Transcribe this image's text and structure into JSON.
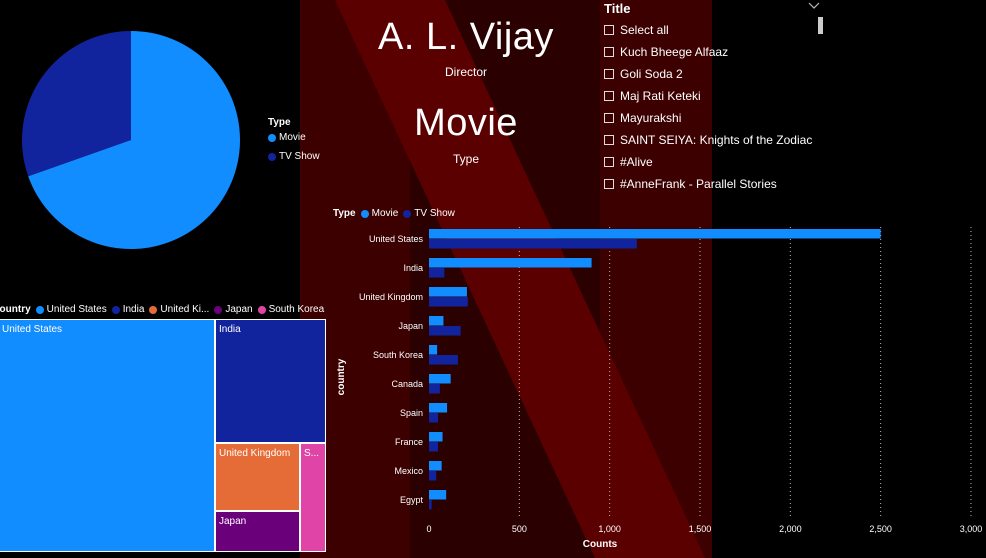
{
  "colors": {
    "movie": "#118DFF",
    "tv_show": "#12239E",
    "united_states": "#118DFF",
    "india": "#12239E",
    "united_kingdom": "#E66C37",
    "japan": "#6B007B",
    "south_korea": "#E044A7"
  },
  "kpi_director": {
    "value": "A. L. Vijay",
    "label": "Director"
  },
  "kpi_type": {
    "value": "Movie",
    "label": "Type"
  },
  "slicer": {
    "title": "Title",
    "items": [
      "Select all",
      "Kuch Bheege Alfaaz",
      "Goli Soda 2",
      "Maj Rati Keteki",
      "Mayurakshi",
      "SAINT SEIYA: Knights of the Zodiac",
      "#Alive",
      "#AnneFrank - Parallel Stories"
    ]
  },
  "chart_data": [
    {
      "type": "pie",
      "legend_title": "Type",
      "legend_position": "right",
      "slices": [
        {
          "label": "Movie",
          "value": 69.6
        },
        {
          "label": "TV Show",
          "value": 30.4
        }
      ]
    },
    {
      "type": "treemap",
      "legend_title": "country",
      "legend_items": [
        "United States",
        "India",
        "United Ki...",
        "Japan",
        "South Korea"
      ],
      "cells": [
        {
          "label": "United States",
          "value": 3650
        },
        {
          "label": "India",
          "value": 975
        },
        {
          "label": "United Kingdom",
          "value": 420
        },
        {
          "label": "Japan",
          "value": 245
        },
        {
          "label": "S...",
          "value": 200
        }
      ]
    },
    {
      "type": "bar",
      "orientation": "horizontal",
      "legend_title": "Type",
      "legend_position": "top-left",
      "xlabel": "Counts",
      "ylabel": "country",
      "xlim": [
        0,
        3000
      ],
      "xticks": [
        0,
        500,
        1000,
        1500,
        2000,
        2500,
        3000
      ],
      "xtick_labels": [
        "0",
        "500",
        "1,000",
        "1,500",
        "2,000",
        "2,500",
        "3,000"
      ],
      "grid": true,
      "categories": [
        "United States",
        "India",
        "United Kingdom",
        "Japan",
        "South Korea",
        "Canada",
        "Spain",
        "France",
        "Mexico",
        "Egypt"
      ],
      "series": [
        {
          "name": "Movie",
          "values": [
            2500,
            900,
            210,
            80,
            45,
            120,
            100,
            75,
            70,
            95
          ]
        },
        {
          "name": "TV Show",
          "values": [
            1150,
            85,
            215,
            175,
            160,
            60,
            50,
            50,
            40,
            15
          ]
        }
      ]
    }
  ]
}
